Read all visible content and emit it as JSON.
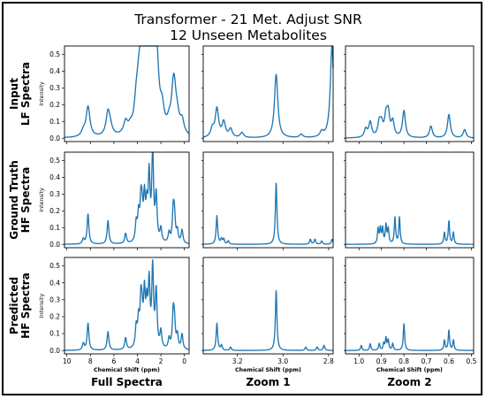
{
  "figure": {
    "title_line1": "Transformer - 21 Met. Adjust SNR",
    "title_line2": "12 Unseen Metabolites",
    "row_labels": [
      [
        "Input",
        "LF Spectra"
      ],
      [
        "Ground Truth",
        "HF Spectra"
      ],
      [
        "Predicted",
        "HF Spectra"
      ]
    ],
    "column_labels": [
      "Full Spectra",
      "Zoom 1",
      "Zoom 2"
    ],
    "ylabel": "Intensity",
    "xlabel": "Chemical Shift (ppm)",
    "line_color": "#1f77b4"
  },
  "chart_data": [
    {
      "type": "line",
      "panels": [
        "Input LF Spectra",
        "Ground Truth HF Spectra",
        "Predicted HF Spectra"
      ],
      "column": "Full Spectra",
      "xlim": [
        10.2,
        -0.4
      ],
      "x_ticks": [
        10,
        8,
        6,
        4,
        2,
        0
      ],
      "ylim": [
        -0.02,
        0.55
      ],
      "y_ticks": [
        0.0,
        0.1,
        0.2,
        0.3,
        0.4,
        0.5
      ],
      "x_reversed": true,
      "peaks": {
        "input_lf": [
          [
            8.2,
            0.18
          ],
          [
            8.6,
            0.03
          ],
          [
            6.5,
            0.14
          ],
          [
            6.3,
            0.04
          ],
          [
            5.0,
            0.07
          ],
          [
            4.6,
            0.03
          ],
          [
            4.1,
            0.13
          ],
          [
            3.9,
            0.16
          ],
          [
            3.7,
            0.22
          ],
          [
            3.6,
            0.16
          ],
          [
            3.4,
            0.3
          ],
          [
            3.2,
            0.18
          ],
          [
            3.0,
            0.4
          ],
          [
            2.7,
            0.54
          ],
          [
            2.4,
            0.29
          ],
          [
            2.3,
            0.12
          ],
          [
            1.9,
            0.12
          ],
          [
            1.3,
            0.05
          ],
          [
            0.95,
            0.18
          ],
          [
            0.85,
            0.16
          ],
          [
            0.6,
            0.08
          ],
          [
            0.2,
            0.08
          ]
        ],
        "ground_truth_hf": [
          [
            8.2,
            0.18
          ],
          [
            8.6,
            0.03
          ],
          [
            6.5,
            0.14
          ],
          [
            5.0,
            0.06
          ],
          [
            4.1,
            0.11
          ],
          [
            3.9,
            0.15
          ],
          [
            3.7,
            0.22
          ],
          [
            3.6,
            0.14
          ],
          [
            3.4,
            0.25
          ],
          [
            3.2,
            0.18
          ],
          [
            3.0,
            0.38
          ],
          [
            2.7,
            0.54
          ],
          [
            2.4,
            0.27
          ],
          [
            2.0,
            0.08
          ],
          [
            1.3,
            0.06
          ],
          [
            0.95,
            0.18
          ],
          [
            0.85,
            0.15
          ],
          [
            0.6,
            0.07
          ],
          [
            0.2,
            0.08
          ]
        ],
        "predicted_hf": [
          [
            8.2,
            0.16
          ],
          [
            8.6,
            0.04
          ],
          [
            6.5,
            0.11
          ],
          [
            5.0,
            0.07
          ],
          [
            4.1,
            0.12
          ],
          [
            3.9,
            0.15
          ],
          [
            3.7,
            0.25
          ],
          [
            3.6,
            0.14
          ],
          [
            3.4,
            0.3
          ],
          [
            3.2,
            0.22
          ],
          [
            3.0,
            0.36
          ],
          [
            2.7,
            0.46
          ],
          [
            2.4,
            0.33
          ],
          [
            2.0,
            0.1
          ],
          [
            1.3,
            0.06
          ],
          [
            0.95,
            0.2
          ],
          [
            0.85,
            0.14
          ],
          [
            0.6,
            0.08
          ],
          [
            0.2,
            0.09
          ]
        ]
      }
    },
    {
      "type": "line",
      "panels": [
        "Input LF Spectra",
        "Ground Truth HF Spectra",
        "Predicted HF Spectra"
      ],
      "column": "Zoom 1",
      "xlim": [
        3.35,
        2.78
      ],
      "x_ticks": [
        3.2,
        3.0,
        2.8
      ],
      "ylim": [
        -0.02,
        0.55
      ],
      "x_reversed": true,
      "peaks": {
        "input_lf": [
          [
            3.29,
            0.17
          ],
          [
            3.31,
            0.05
          ],
          [
            3.26,
            0.09
          ],
          [
            3.23,
            0.05
          ],
          [
            3.18,
            0.03
          ],
          [
            3.03,
            0.38
          ],
          [
            2.92,
            0.02
          ],
          [
            2.83,
            0.03
          ],
          [
            2.785,
            0.55
          ]
        ],
        "ground_truth_hf": [
          [
            3.29,
            0.17
          ],
          [
            3.27,
            0.03
          ],
          [
            3.26,
            0.03
          ],
          [
            3.24,
            0.02
          ],
          [
            3.03,
            0.37
          ],
          [
            2.88,
            0.03
          ],
          [
            2.86,
            0.03
          ],
          [
            2.83,
            0.02
          ],
          [
            2.785,
            0.03
          ]
        ],
        "predicted_hf": [
          [
            3.29,
            0.16
          ],
          [
            3.27,
            0.03
          ],
          [
            3.23,
            0.02
          ],
          [
            3.03,
            0.36
          ],
          [
            2.9,
            0.02
          ],
          [
            2.85,
            0.02
          ],
          [
            2.82,
            0.03
          ]
        ]
      }
    },
    {
      "type": "line",
      "panels": [
        "Input LF Spectra",
        "Ground Truth HF Spectra",
        "Predicted HF Spectra"
      ],
      "column": "Zoom 2",
      "xlim": [
        1.06,
        0.49
      ],
      "x_ticks": [
        1.0,
        0.9,
        0.8,
        0.7,
        0.6,
        0.5
      ],
      "ylim": [
        -0.02,
        0.55
      ],
      "x_reversed": true,
      "peaks": {
        "input_lf": [
          [
            0.97,
            0.05
          ],
          [
            0.95,
            0.09
          ],
          [
            0.91,
            0.08
          ],
          [
            0.9,
            0.07
          ],
          [
            0.88,
            0.11
          ],
          [
            0.87,
            0.13
          ],
          [
            0.85,
            0.09
          ],
          [
            0.8,
            0.16
          ],
          [
            0.68,
            0.07
          ],
          [
            0.6,
            0.14
          ],
          [
            0.53,
            0.05
          ]
        ],
        "ground_truth_hf": [
          [
            0.915,
            0.09
          ],
          [
            0.905,
            0.09
          ],
          [
            0.895,
            0.09
          ],
          [
            0.88,
            0.11
          ],
          [
            0.87,
            0.09
          ],
          [
            0.84,
            0.16
          ],
          [
            0.82,
            0.16
          ],
          [
            0.62,
            0.07
          ],
          [
            0.6,
            0.14
          ],
          [
            0.58,
            0.07
          ]
        ],
        "predicted_hf": [
          [
            0.99,
            0.03
          ],
          [
            0.95,
            0.04
          ],
          [
            0.91,
            0.04
          ],
          [
            0.89,
            0.04
          ],
          [
            0.88,
            0.07
          ],
          [
            0.87,
            0.06
          ],
          [
            0.85,
            0.04
          ],
          [
            0.8,
            0.16
          ],
          [
            0.62,
            0.06
          ],
          [
            0.6,
            0.12
          ],
          [
            0.58,
            0.06
          ]
        ]
      }
    }
  ]
}
